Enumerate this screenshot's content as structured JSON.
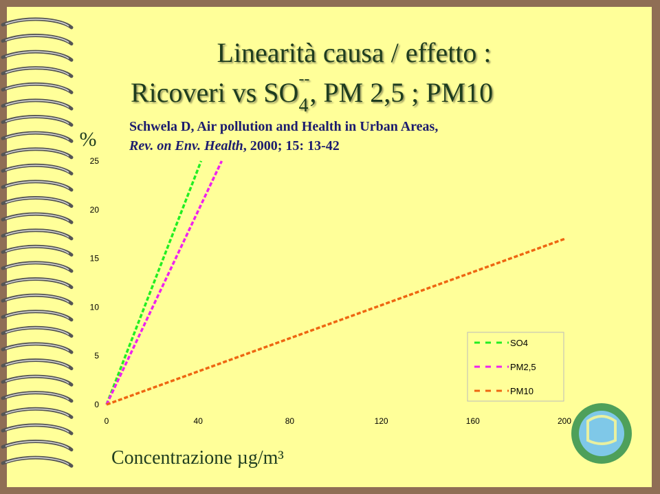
{
  "slide": {
    "title_line1": "Linearità causa / effetto :",
    "title_line2": {
      "before": "Ricoveri vs SO",
      "subscript": "4",
      "superscript": "--",
      "after": ", PM 2,5 ; PM10"
    },
    "citation_line1": "Schwela D, Air pollution and Health in Urban Areas,",
    "citation_line2": {
      "italic": "Rev. on Env. Health",
      "rest": ", 2000; 15: 13-42"
    }
  },
  "chart_data": {
    "type": "line",
    "ylabel": "%",
    "xlabel": "Concentrazione  µg/m³",
    "xlim": [
      0,
      200
    ],
    "xticks": [
      0,
      40,
      80,
      120,
      160,
      200
    ],
    "ylim": [
      0,
      25
    ],
    "yticks": [
      0,
      5,
      10,
      15,
      20,
      25
    ],
    "series": [
      {
        "name": "SO4",
        "color": "#22ee22",
        "x": [
          0,
          41.3
        ],
        "values": [
          0,
          25
        ]
      },
      {
        "name": "PM2,5",
        "color": "#ee22ee",
        "x": [
          0,
          50.3
        ],
        "values": [
          0,
          25
        ]
      },
      {
        "name": "PM10",
        "color": "#ee6611",
        "x": [
          0,
          200
        ],
        "values": [
          0,
          17
        ]
      }
    ]
  }
}
